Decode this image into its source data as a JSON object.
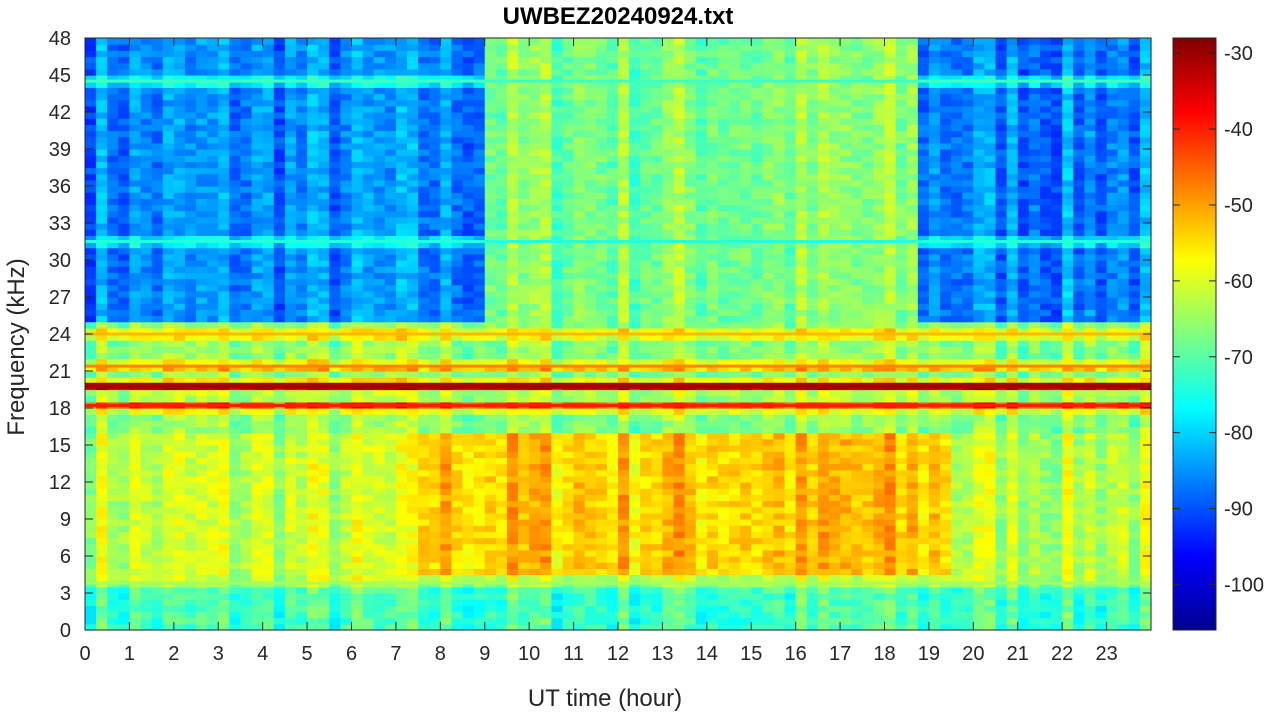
{
  "chart_data": {
    "type": "heatmap",
    "title": "UWBEZ20240924.txt",
    "xlabel": "UT time (hour)",
    "ylabel": "Frequency (kHz)",
    "xlim": [
      0,
      24
    ],
    "ylim": [
      0,
      48
    ],
    "x_ticks": [
      0,
      1,
      2,
      3,
      4,
      5,
      6,
      7,
      8,
      9,
      10,
      11,
      12,
      13,
      14,
      15,
      16,
      17,
      18,
      19,
      20,
      21,
      22,
      23
    ],
    "y_ticks": [
      0,
      3,
      6,
      9,
      12,
      15,
      18,
      21,
      24,
      27,
      30,
      33,
      36,
      39,
      42,
      45,
      48
    ],
    "colorbar": {
      "colormap": "jet",
      "range": [
        -106,
        -28
      ],
      "ticks": [
        -30,
        -40,
        -50,
        -60,
        -70,
        -80,
        -90,
        -100
      ]
    },
    "bands": [
      {
        "type": "background",
        "f_low": 25,
        "f_high": 48,
        "t_low": 0,
        "t_high": 24,
        "value": -86
      },
      {
        "type": "daytime_upper",
        "f_low": 25,
        "f_high": 48,
        "t_low": 9,
        "t_high": 18.8,
        "value": -67
      },
      {
        "type": "midband",
        "f_low": 16,
        "f_high": 25,
        "t_low": 0,
        "t_high": 24,
        "value": -66
      },
      {
        "type": "lowband_base",
        "f_low": 4,
        "f_high": 16,
        "t_low": 0,
        "t_high": 24,
        "value": -62
      },
      {
        "type": "daytime_enhancement",
        "f_low": 4.5,
        "f_high": 16,
        "t_low": 7.5,
        "t_high": 19.5,
        "value": -53
      },
      {
        "type": "bottom",
        "f_low": 0,
        "f_high": 4,
        "t_low": 0,
        "t_high": 24,
        "value": -72
      }
    ],
    "lines": [
      {
        "freq": 19.8,
        "value": -31
      },
      {
        "freq": 18.2,
        "value": -40
      },
      {
        "freq": 21.4,
        "value": -48
      },
      {
        "freq": 24.0,
        "value": -52
      },
      {
        "freq": 44.5,
        "value": -72
      },
      {
        "freq": 31.5,
        "value": -74
      },
      {
        "freq": 3.8,
        "value": -64
      }
    ]
  }
}
